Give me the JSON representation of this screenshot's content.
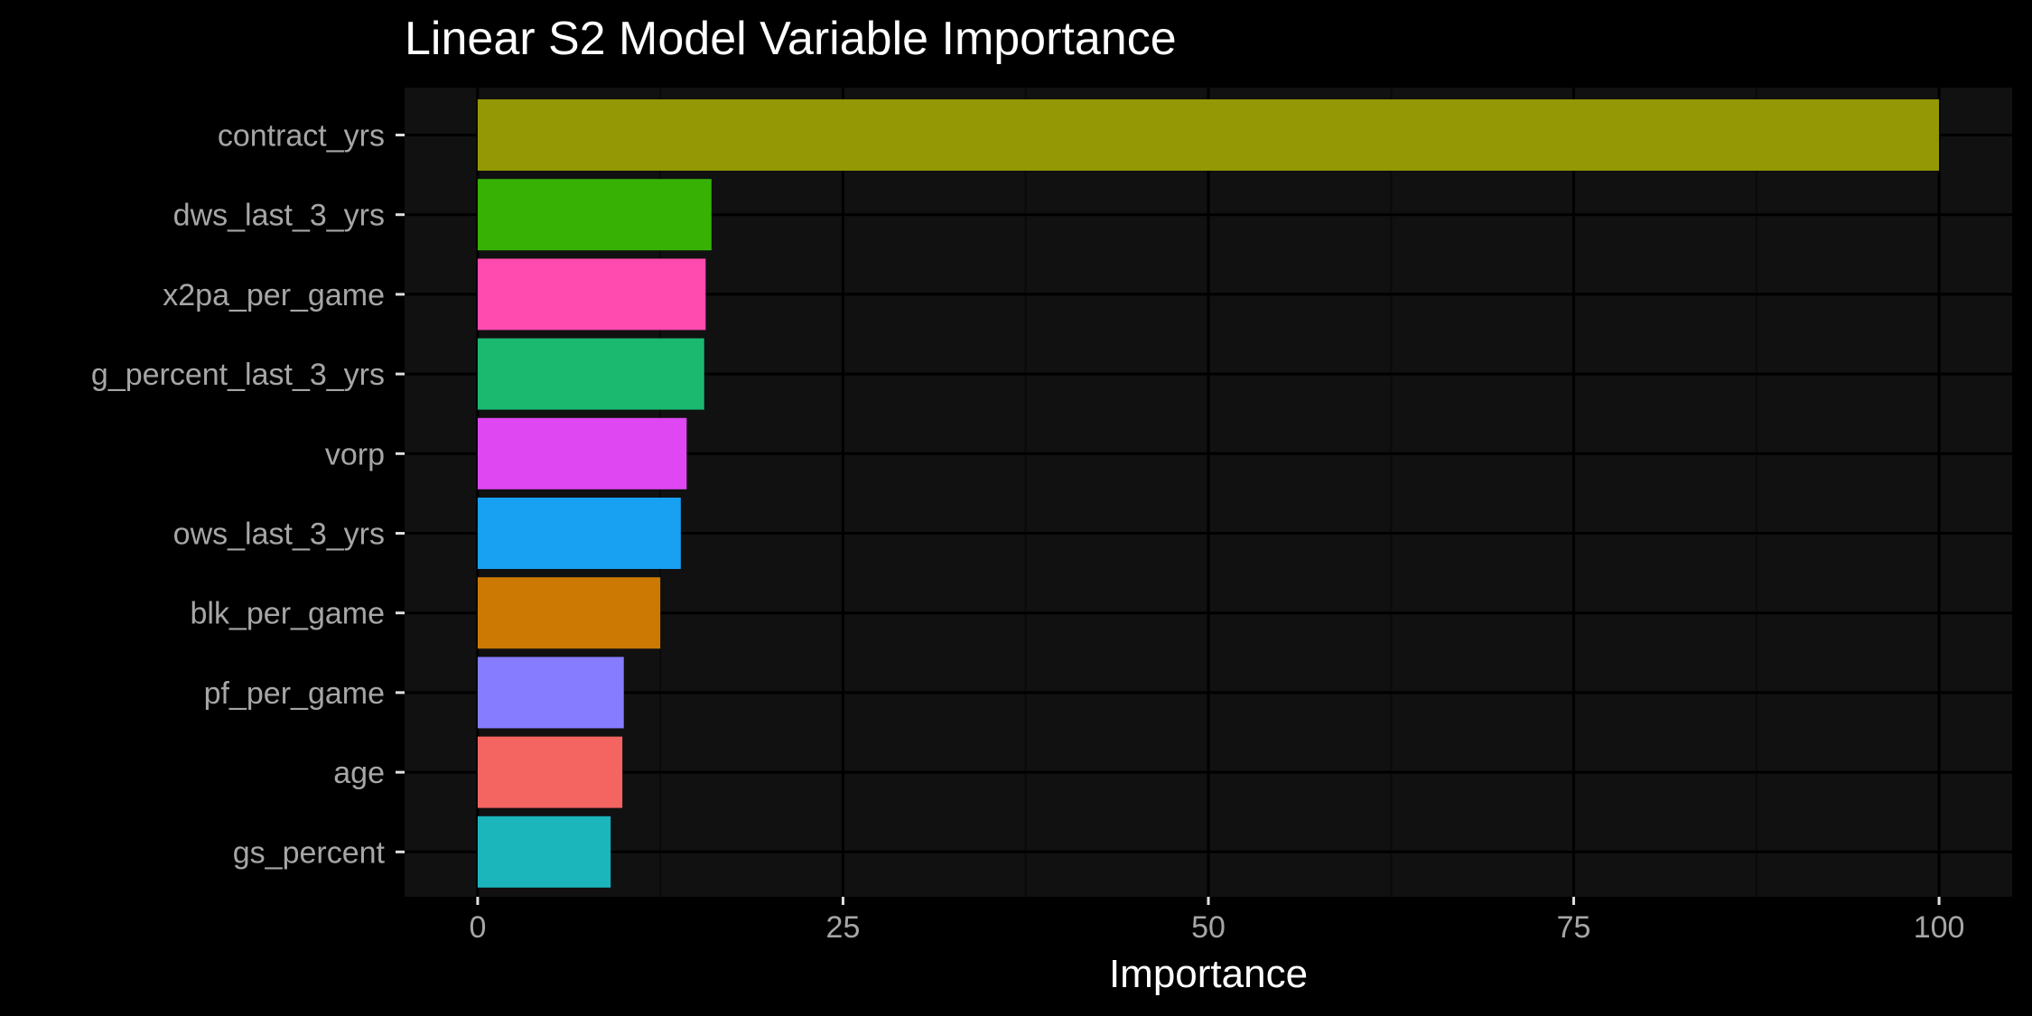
{
  "chart_data": {
    "type": "bar",
    "orientation": "horizontal",
    "title": "Linear S2 Model Variable Importance",
    "xlabel": "Importance",
    "ylabel": "",
    "xlim": [
      -5,
      105
    ],
    "x_ticks": [
      "0",
      "25",
      "50",
      "75",
      "100"
    ],
    "grid": true,
    "legend": "none",
    "categories": [
      "contract_yrs",
      "dws_last_3_yrs",
      "x2pa_per_game",
      "g_percent_last_3_yrs",
      "vorp",
      "ows_last_3_yrs",
      "blk_per_game",
      "pf_per_game",
      "age",
      "gs_percent"
    ],
    "values": [
      100,
      16.0,
      15.6,
      15.5,
      14.3,
      13.9,
      12.5,
      10.0,
      9.9,
      9.1
    ],
    "colors": [
      "#939804",
      "#37b204",
      "#ff4aaf",
      "#1bb96f",
      "#de47f1",
      "#18a0f2",
      "#cc7904",
      "#857cff",
      "#f46461",
      "#1bb5bc"
    ]
  },
  "theme": {
    "background": "#000000",
    "panel": "#111111",
    "grid_major": "#000000",
    "grid_minor": "#0a0a0a",
    "text": "#ffffff",
    "tick_text": "#a6a6a6"
  }
}
